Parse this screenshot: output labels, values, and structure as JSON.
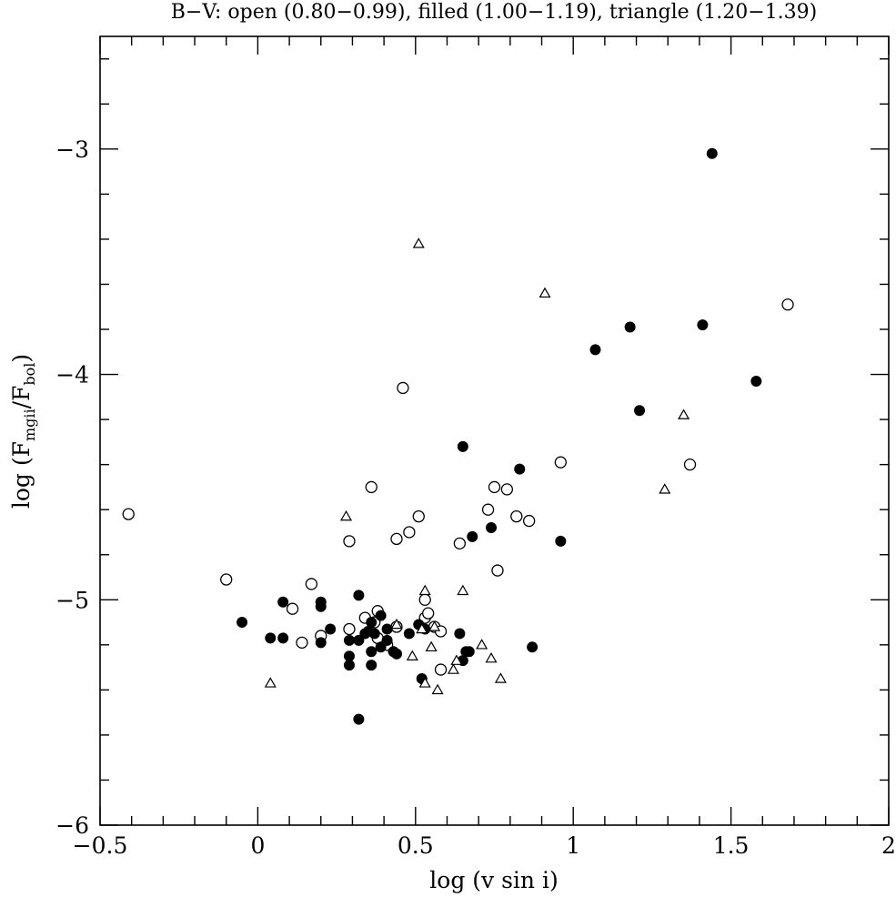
{
  "chart_data": {
    "type": "scatter",
    "title": "B−V: open (0.80−0.99), filled (1.00−1.19), triangle (1.20−1.39)",
    "xlabel": "log (v sin i)",
    "ylabel": {
      "prefix": "log (F",
      "sub1": "mgii",
      "mid": "/F",
      "sub2": "bol",
      "suffix": ")"
    },
    "xlim": [
      -0.5,
      2.0
    ],
    "ylim": [
      -6.0,
      -2.5
    ],
    "xticks": [
      -0.5,
      0,
      0.5,
      1,
      1.5,
      2
    ],
    "xtick_labels": [
      "−0.5",
      "0",
      "0.5",
      "1",
      "1.5",
      "2"
    ],
    "yticks": [
      -6,
      -5,
      -4,
      -3
    ],
    "ytick_labels": [
      "−6",
      "−5",
      "−4",
      "−3"
    ],
    "grid": false,
    "legend": "none",
    "series": [
      {
        "marker": "open-circle",
        "points": [
          [
            -0.41,
            -4.62
          ],
          [
            -0.1,
            -4.91
          ],
          [
            0.11,
            -5.04
          ],
          [
            0.14,
            -5.19
          ],
          [
            0.17,
            -4.93
          ],
          [
            0.2,
            -5.16
          ],
          [
            0.29,
            -4.74
          ],
          [
            0.29,
            -5.13
          ],
          [
            0.34,
            -5.08
          ],
          [
            0.36,
            -4.5
          ],
          [
            0.37,
            -5.1
          ],
          [
            0.38,
            -5.05
          ],
          [
            0.38,
            -5.17
          ],
          [
            0.41,
            -5.2
          ],
          [
            0.44,
            -5.12
          ],
          [
            0.44,
            -4.73
          ],
          [
            0.46,
            -4.06
          ],
          [
            0.48,
            -4.7
          ],
          [
            0.51,
            -4.63
          ],
          [
            0.53,
            -5.0
          ],
          [
            0.53,
            -5.08
          ],
          [
            0.54,
            -5.06
          ],
          [
            0.56,
            -5.12
          ],
          [
            0.58,
            -5.31
          ],
          [
            0.58,
            -5.14
          ],
          [
            0.64,
            -4.75
          ],
          [
            0.73,
            -4.6
          ],
          [
            0.75,
            -4.5
          ],
          [
            0.76,
            -4.87
          ],
          [
            0.79,
            -4.51
          ],
          [
            0.82,
            -4.63
          ],
          [
            0.86,
            -4.65
          ],
          [
            0.96,
            -4.39
          ],
          [
            1.37,
            -4.4
          ],
          [
            1.68,
            -3.69
          ]
        ]
      },
      {
        "marker": "filled-circle",
        "points": [
          [
            -0.05,
            -5.1
          ],
          [
            0.04,
            -5.17
          ],
          [
            0.08,
            -5.01
          ],
          [
            0.08,
            -5.17
          ],
          [
            0.2,
            -5.19
          ],
          [
            0.2,
            -5.03
          ],
          [
            0.2,
            -5.01
          ],
          [
            0.23,
            -5.13
          ],
          [
            0.29,
            -5.18
          ],
          [
            0.29,
            -5.25
          ],
          [
            0.29,
            -5.29
          ],
          [
            0.32,
            -4.98
          ],
          [
            0.32,
            -5.18
          ],
          [
            0.32,
            -5.53
          ],
          [
            0.34,
            -5.15
          ],
          [
            0.35,
            -5.14
          ],
          [
            0.36,
            -5.1
          ],
          [
            0.36,
            -5.23
          ],
          [
            0.36,
            -5.29
          ],
          [
            0.37,
            -5.15
          ],
          [
            0.39,
            -5.21
          ],
          [
            0.39,
            -5.07
          ],
          [
            0.41,
            -5.18
          ],
          [
            0.41,
            -5.13
          ],
          [
            0.43,
            -5.23
          ],
          [
            0.44,
            -5.24
          ],
          [
            0.48,
            -5.15
          ],
          [
            0.51,
            -5.11
          ],
          [
            0.52,
            -5.35
          ],
          [
            0.53,
            -5.13
          ],
          [
            0.64,
            -5.15
          ],
          [
            0.65,
            -5.27
          ],
          [
            0.66,
            -5.23
          ],
          [
            0.67,
            -5.23
          ],
          [
            0.65,
            -4.32
          ],
          [
            0.68,
            -4.72
          ],
          [
            0.74,
            -4.68
          ],
          [
            0.83,
            -4.42
          ],
          [
            0.87,
            -5.21
          ],
          [
            0.96,
            -4.74
          ],
          [
            1.07,
            -3.89
          ],
          [
            1.18,
            -3.79
          ],
          [
            1.21,
            -4.16
          ],
          [
            1.41,
            -3.78
          ],
          [
            1.44,
            -3.02
          ],
          [
            1.58,
            -4.03
          ]
        ]
      },
      {
        "marker": "open-triangle",
        "points": [
          [
            0.04,
            -5.37
          ],
          [
            0.28,
            -4.63
          ],
          [
            0.44,
            -5.11
          ],
          [
            0.49,
            -5.25
          ],
          [
            0.51,
            -3.42
          ],
          [
            0.52,
            -5.13
          ],
          [
            0.53,
            -4.96
          ],
          [
            0.53,
            -5.37
          ],
          [
            0.55,
            -5.21
          ],
          [
            0.56,
            -5.12
          ],
          [
            0.57,
            -5.4
          ],
          [
            0.62,
            -5.31
          ],
          [
            0.63,
            -5.27
          ],
          [
            0.65,
            -4.96
          ],
          [
            0.71,
            -5.2
          ],
          [
            0.74,
            -5.26
          ],
          [
            0.77,
            -5.35
          ],
          [
            0.91,
            -3.64
          ],
          [
            1.29,
            -4.51
          ],
          [
            1.35,
            -4.18
          ]
        ]
      }
    ]
  }
}
